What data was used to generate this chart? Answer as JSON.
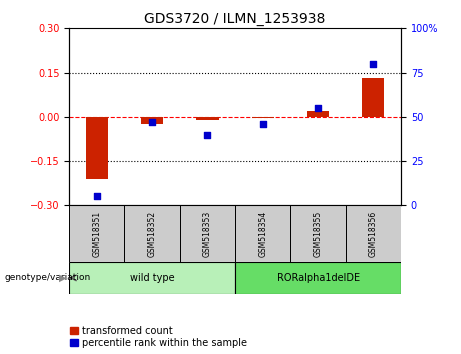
{
  "title": "GDS3720 / ILMN_1253938",
  "categories": [
    "GSM518351",
    "GSM518352",
    "GSM518353",
    "GSM518354",
    "GSM518355",
    "GSM518356"
  ],
  "red_values": [
    -0.21,
    -0.025,
    -0.01,
    -0.005,
    0.02,
    0.13
  ],
  "blue_values": [
    5,
    47,
    40,
    46,
    55,
    80
  ],
  "ylim_left": [
    -0.3,
    0.3
  ],
  "ylim_right": [
    0,
    100
  ],
  "yticks_left": [
    -0.3,
    -0.15,
    0.0,
    0.15,
    0.3
  ],
  "yticks_right": [
    0,
    25,
    50,
    75,
    100
  ],
  "hlines": [
    0.15,
    -0.15
  ],
  "groups": [
    {
      "label": "wild type",
      "indices": [
        0,
        1,
        2
      ],
      "color": "#b8f0b8"
    },
    {
      "label": "RORalpha1delDE",
      "indices": [
        3,
        4,
        5
      ],
      "color": "#66dd66"
    }
  ],
  "bar_color": "#cc2200",
  "dot_color": "#0000cc",
  "background_color": "#ffffff",
  "title_fontsize": 10,
  "tick_fontsize": 7,
  "label_fontsize": 7,
  "legend_fontsize": 7,
  "group_label": "genotype/variation",
  "bar_width": 0.4
}
